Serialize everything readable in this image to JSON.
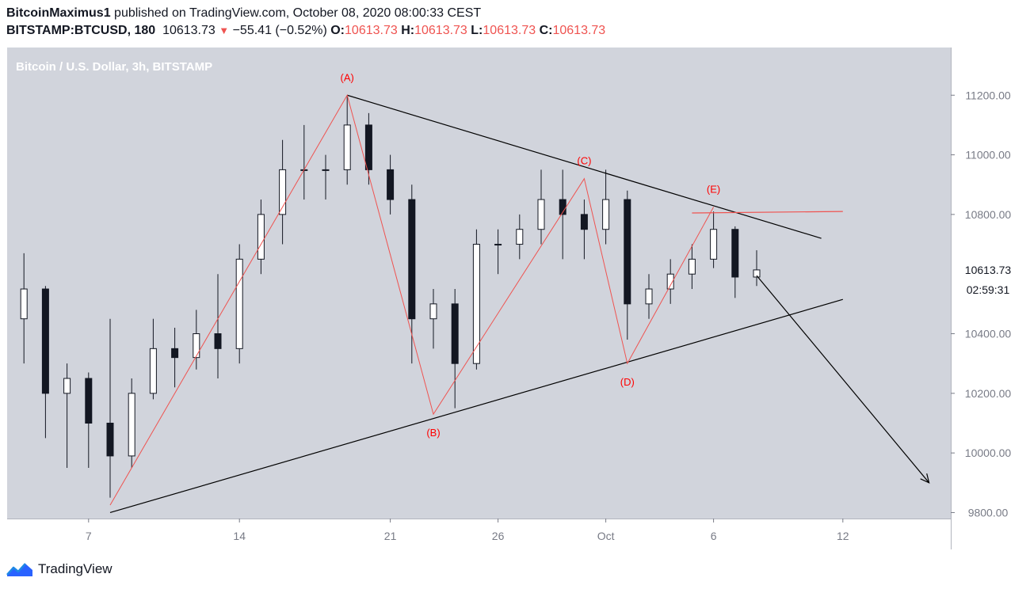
{
  "header": {
    "author": "BitcoinMaximus1",
    "published": " published on TradingView.com, October 08, 2020 08:00:33 CEST",
    "symbol": "BITSTAMP:BTCUSD, 180",
    "price": "10613.73",
    "change_arrow": "▼",
    "change": "−55.41 (−0.52%)",
    "o_label": "O:",
    "o_value": "10613.73",
    "h_label": "H:",
    "h_value": "10613.73",
    "l_label": "L:",
    "l_value": "10613.73",
    "c_label": "C:",
    "c_value": "10613.73"
  },
  "footer": {
    "brand": "TradingView",
    "logo_icon": "tradingview-logo-icon"
  },
  "colors": {
    "plot_bg": "#d1d4dc",
    "axis_bg": "#ffffff",
    "wave_red": "#ef5350",
    "label_red": "#ff0000",
    "trendline": "#000000",
    "candle": "#131722"
  },
  "chart_data": {
    "type": "candlestick",
    "title": "Bitcoin / U.S. Dollar, 3h, BITSTAMP",
    "currency": "USD",
    "x_ticks": [
      "7",
      "14",
      "21",
      "26",
      "Oct",
      "6",
      "12"
    ],
    "y_ticks": [
      "11200.00",
      "11000.00",
      "10800.00",
      "10400.00",
      "10200.00",
      "10000.00",
      "9800.00"
    ],
    "ylim": [
      9780,
      11360
    ],
    "last_price": "10613.73",
    "countdown": "02:59:31",
    "wave_points": [
      {
        "label": "",
        "date": "Sep 08",
        "price": 9825
      },
      {
        "label": "(A)",
        "date": "Sep 19",
        "price": 11200
      },
      {
        "label": "(B)",
        "date": "Sep 23",
        "price": 10130
      },
      {
        "label": "(C)",
        "date": "Sep 30",
        "price": 10920
      },
      {
        "label": "(D)",
        "date": "Oct 02",
        "price": 10300
      },
      {
        "label": "(E)",
        "date": "Oct 06",
        "price": 10825
      }
    ],
    "upper_trendline": [
      {
        "date": "Sep 19",
        "price": 11200
      },
      {
        "date": "Oct 11",
        "price": 10720
      }
    ],
    "lower_trendline": [
      {
        "date": "Sep 08",
        "price": 9800
      },
      {
        "date": "Oct 12",
        "price": 10515
      }
    ],
    "e_resistance": [
      {
        "date": "Oct 05",
        "price": 10805
      },
      {
        "date": "Oct 12",
        "price": 10810
      }
    ],
    "projection_arrow": [
      {
        "date": "Oct 08",
        "price": 10595
      },
      {
        "date": "Oct 16",
        "price": 9900
      }
    ],
    "candles": [
      {
        "t": "Sep 04",
        "o": 10450,
        "h": 10670,
        "l": 10300,
        "c": 10550
      },
      {
        "t": "Sep 05",
        "o": 10550,
        "h": 10560,
        "l": 10050,
        "c": 10200
      },
      {
        "t": "Sep 06",
        "o": 10200,
        "h": 10300,
        "l": 9950,
        "c": 10250
      },
      {
        "t": "Sep 07",
        "o": 10250,
        "h": 10270,
        "l": 9950,
        "c": 10100
      },
      {
        "t": "Sep 08",
        "o": 10100,
        "h": 10450,
        "l": 9850,
        "c": 9990
      },
      {
        "t": "Sep 09",
        "o": 9990,
        "h": 10250,
        "l": 9950,
        "c": 10200
      },
      {
        "t": "Sep 10",
        "o": 10200,
        "h": 10450,
        "l": 10180,
        "c": 10350
      },
      {
        "t": "Sep 11",
        "o": 10350,
        "h": 10420,
        "l": 10220,
        "c": 10320
      },
      {
        "t": "Sep 12",
        "o": 10320,
        "h": 10480,
        "l": 10280,
        "c": 10400
      },
      {
        "t": "Sep 13",
        "o": 10400,
        "h": 10600,
        "l": 10250,
        "c": 10350
      },
      {
        "t": "Sep 14",
        "o": 10350,
        "h": 10700,
        "l": 10300,
        "c": 10650
      },
      {
        "t": "Sep 15",
        "o": 10650,
        "h": 10850,
        "l": 10600,
        "c": 10800
      },
      {
        "t": "Sep 16",
        "o": 10800,
        "h": 11050,
        "l": 10700,
        "c": 10950
      },
      {
        "t": "Sep 17",
        "o": 10950,
        "h": 11100,
        "l": 10850,
        "c": 10950
      },
      {
        "t": "Sep 18",
        "o": 10950,
        "h": 11000,
        "l": 10850,
        "c": 10950
      },
      {
        "t": "Sep 19",
        "o": 10950,
        "h": 11200,
        "l": 10900,
        "c": 11100
      },
      {
        "t": "Sep 20",
        "o": 11100,
        "h": 11140,
        "l": 10900,
        "c": 10950
      },
      {
        "t": "Sep 21",
        "o": 10950,
        "h": 11000,
        "l": 10800,
        "c": 10850
      },
      {
        "t": "Sep 22",
        "o": 10850,
        "h": 10900,
        "l": 10300,
        "c": 10450
      },
      {
        "t": "Sep 23",
        "o": 10450,
        "h": 10550,
        "l": 10350,
        "c": 10500
      },
      {
        "t": "Sep 24",
        "o": 10500,
        "h": 10550,
        "l": 10150,
        "c": 10300
      },
      {
        "t": "Sep 25",
        "o": 10300,
        "h": 10750,
        "l": 10280,
        "c": 10700
      },
      {
        "t": "Sep 26",
        "o": 10700,
        "h": 10750,
        "l": 10600,
        "c": 10700
      },
      {
        "t": "Sep 27",
        "o": 10700,
        "h": 10800,
        "l": 10650,
        "c": 10750
      },
      {
        "t": "Sep 28",
        "o": 10750,
        "h": 10950,
        "l": 10700,
        "c": 10850
      },
      {
        "t": "Sep 29",
        "o": 10850,
        "h": 10950,
        "l": 10650,
        "c": 10800
      },
      {
        "t": "Sep 30",
        "o": 10800,
        "h": 10850,
        "l": 10650,
        "c": 10750
      },
      {
        "t": "Oct 01",
        "o": 10750,
        "h": 10950,
        "l": 10700,
        "c": 10850
      },
      {
        "t": "Oct 02",
        "o": 10850,
        "h": 10880,
        "l": 10380,
        "c": 10500
      },
      {
        "t": "Oct 03",
        "o": 10500,
        "h": 10600,
        "l": 10450,
        "c": 10550
      },
      {
        "t": "Oct 04",
        "o": 10550,
        "h": 10650,
        "l": 10500,
        "c": 10600
      },
      {
        "t": "Oct 05",
        "o": 10600,
        "h": 10700,
        "l": 10550,
        "c": 10650
      },
      {
        "t": "Oct 06",
        "o": 10650,
        "h": 10810,
        "l": 10620,
        "c": 10750
      },
      {
        "t": "Oct 07",
        "o": 10750,
        "h": 10760,
        "l": 10520,
        "c": 10590
      },
      {
        "t": "Oct 08",
        "o": 10590,
        "h": 10680,
        "l": 10560,
        "c": 10614
      }
    ]
  }
}
